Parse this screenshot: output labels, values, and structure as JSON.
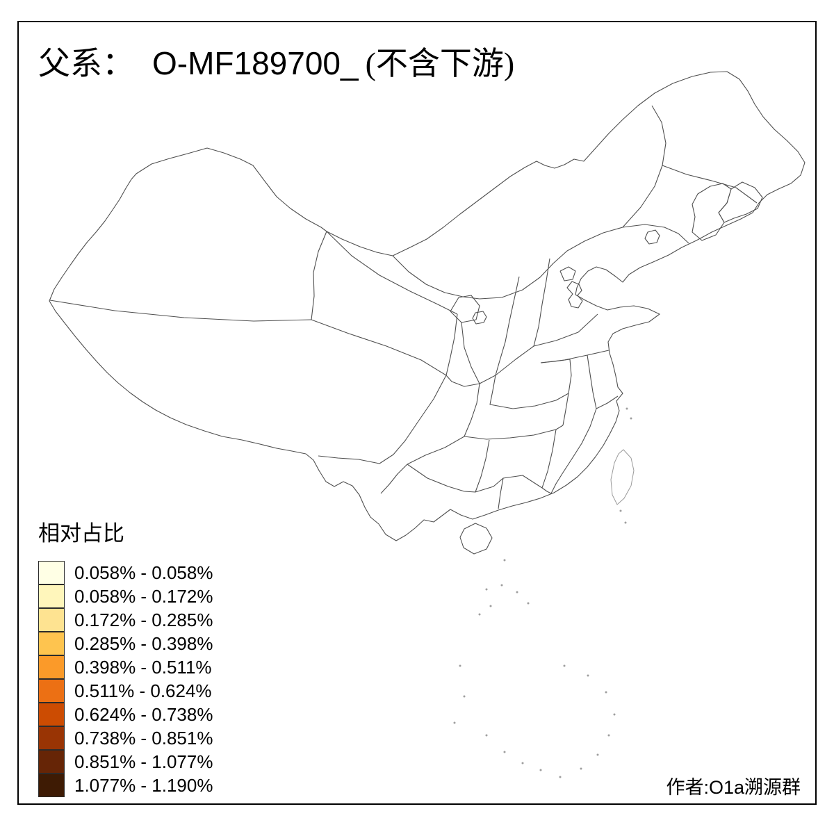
{
  "title": {
    "prefix": "父系：",
    "code": "O-MF189700_",
    "suffix": "(不含下游)"
  },
  "author": "作者:O1a溯源群",
  "legend": {
    "title": "相对占比",
    "items": [
      {
        "label": "0.058% - 0.058%",
        "color": "#FFFFE5"
      },
      {
        "label": "0.058% - 0.172%",
        "color": "#FFF6BB"
      },
      {
        "label": "0.172% - 0.285%",
        "color": "#FEE391"
      },
      {
        "label": "0.285% - 0.398%",
        "color": "#FEC44F"
      },
      {
        "label": "0.398% - 0.511%",
        "color": "#FB9A29"
      },
      {
        "label": "0.511% - 0.624%",
        "color": "#EC7014"
      },
      {
        "label": "0.624% - 0.738%",
        "color": "#CC4C02"
      },
      {
        "label": "0.738% - 0.851%",
        "color": "#993404"
      },
      {
        "label": "0.851% - 1.077%",
        "color": "#662506"
      },
      {
        "label": "1.077% - 1.190%",
        "color": "#3E1B04"
      }
    ]
  },
  "map": {
    "land_color": "#D3D3D3",
    "border_color": "#4F4F4F",
    "taiwan_fill": "#FFFFFF",
    "sea_islands_color": "#9E9E9E",
    "highlighted_regions": [
      {
        "name": "tianjin-area",
        "band": "0.058% - 0.058%",
        "color": "#FFFFE5"
      },
      {
        "name": "liaoning-spot",
        "band": "0.285% - 0.398%",
        "color": "#FEC44F"
      },
      {
        "name": "jilin-west-patch",
        "band": "0.511% - 0.624%",
        "color": "#EC7014"
      },
      {
        "name": "jilin-east-patch",
        "band": "0.624% - 0.738%",
        "color": "#CC4C02"
      },
      {
        "name": "shaanxi-spot",
        "band": "0.851% - 1.077%",
        "color": "#662506"
      }
    ]
  }
}
